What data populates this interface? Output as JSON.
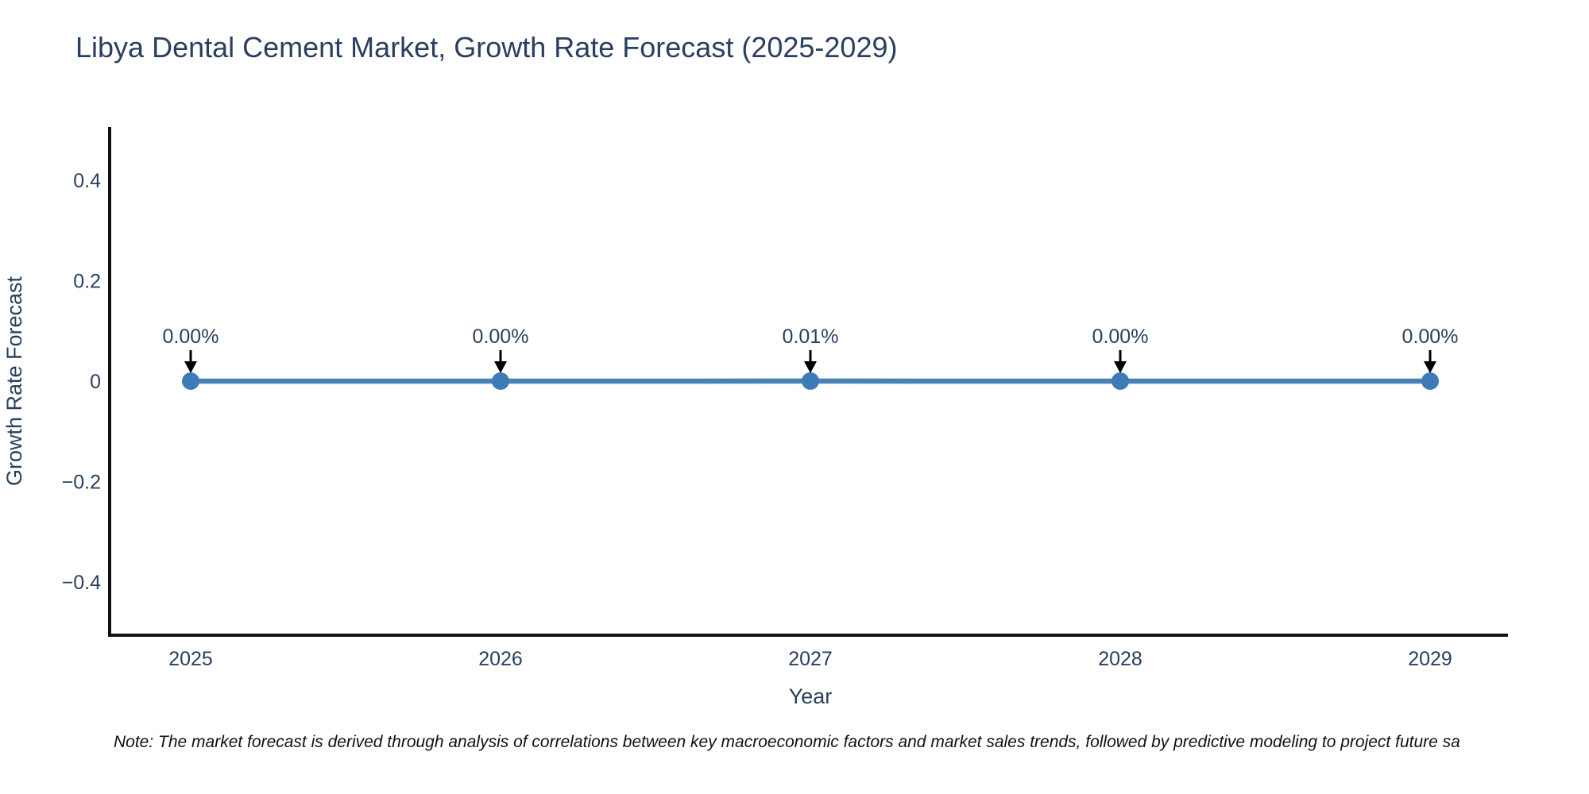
{
  "title": "Libya Dental Cement Market, Growth Rate Forecast (2025-2029)",
  "footnote": "Note: The market forecast is derived through analysis of correlations between key macroeconomic factors and market sales trends, followed by predictive modeling to project future sa",
  "colors": {
    "text": "#2a3f5f",
    "axis": "#111111",
    "line": "#4a81b4",
    "marker": "#3d7bb8",
    "arrow": "#000000",
    "note_text": "#111111",
    "background": "#ffffff"
  },
  "chart_data": {
    "type": "line",
    "title": "Libya Dental Cement Market, Growth Rate Forecast (2025-2029)",
    "xlabel": "Year",
    "ylabel": "Growth Rate Forecast",
    "x": [
      2025,
      2026,
      2027,
      2028,
      2029
    ],
    "x_tick_labels": [
      "2025",
      "2026",
      "2027",
      "2028",
      "2029"
    ],
    "series": [
      {
        "name": "Growth Rate Forecast",
        "values_percent": [
          0.0,
          0.0,
          0.01,
          0.0,
          0.0
        ],
        "point_labels": [
          "0.00%",
          "0.00%",
          "0.01%",
          "0.00%",
          "0.00%"
        ]
      }
    ],
    "y_ticks": [
      {
        "value": 0.4,
        "label": "0.4"
      },
      {
        "value": 0.2,
        "label": "0.2"
      },
      {
        "value": 0,
        "label": "0"
      },
      {
        "value": -0.2,
        "label": "−0.2"
      },
      {
        "value": -0.4,
        "label": "−0.4"
      }
    ],
    "ylim": [
      -0.5,
      0.5
    ],
    "grid": false,
    "legend": false,
    "annotation_style": "value labels above points with downward black arrows"
  }
}
